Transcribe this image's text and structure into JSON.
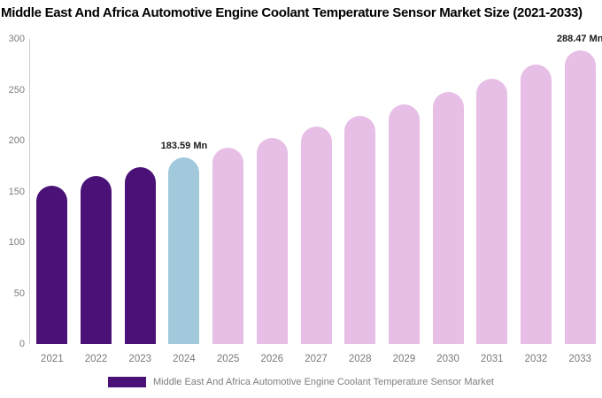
{
  "title": "Middle East And Africa Automotive Engine Coolant Temperature Sensor Market Size (2021-2033)",
  "colors": {
    "historical_bar": "#4A1277",
    "base_year_bar": "#A2C8DC",
    "forecast_bar": "#E6BEE6",
    "axis_line": "#cccccc",
    "tick_text": "#7e7e7e",
    "annotation_text": "#1a1a1a",
    "title_text": "#000000"
  },
  "legend": {
    "label": "Middle East And Africa Automotive Engine Coolant Temperature Sensor Market",
    "swatch_color": "#4A1277"
  },
  "chart_data": {
    "type": "bar",
    "title": "Middle East And Africa Automotive Engine Coolant Temperature Sensor Market Size (2021-2033)",
    "categories": [
      "2021",
      "2022",
      "2023",
      "2024",
      "2025",
      "2026",
      "2027",
      "2028",
      "2029",
      "2030",
      "2031",
      "2032",
      "2033"
    ],
    "values": [
      156,
      165,
      174,
      183.59,
      193.1,
      203.0,
      213.5,
      224.5,
      236.0,
      248.2,
      260.9,
      274.4,
      288.47
    ],
    "unit": "Mn",
    "bar_roles": [
      "historical_bar",
      "historical_bar",
      "historical_bar",
      "base_year_bar",
      "forecast_bar",
      "forecast_bar",
      "forecast_bar",
      "forecast_bar",
      "forecast_bar",
      "forecast_bar",
      "forecast_bar",
      "forecast_bar",
      "forecast_bar"
    ],
    "annotations": [
      {
        "category": "2024",
        "text": "183.59 Mn"
      },
      {
        "category": "2033",
        "text": "288.47 Mn"
      }
    ],
    "xlabel": "",
    "ylabel": "",
    "ylim": [
      0,
      300
    ],
    "yticks": [
      0,
      50,
      100,
      150,
      200,
      250,
      300
    ],
    "grid": false,
    "legend_position": "bottom-center"
  }
}
